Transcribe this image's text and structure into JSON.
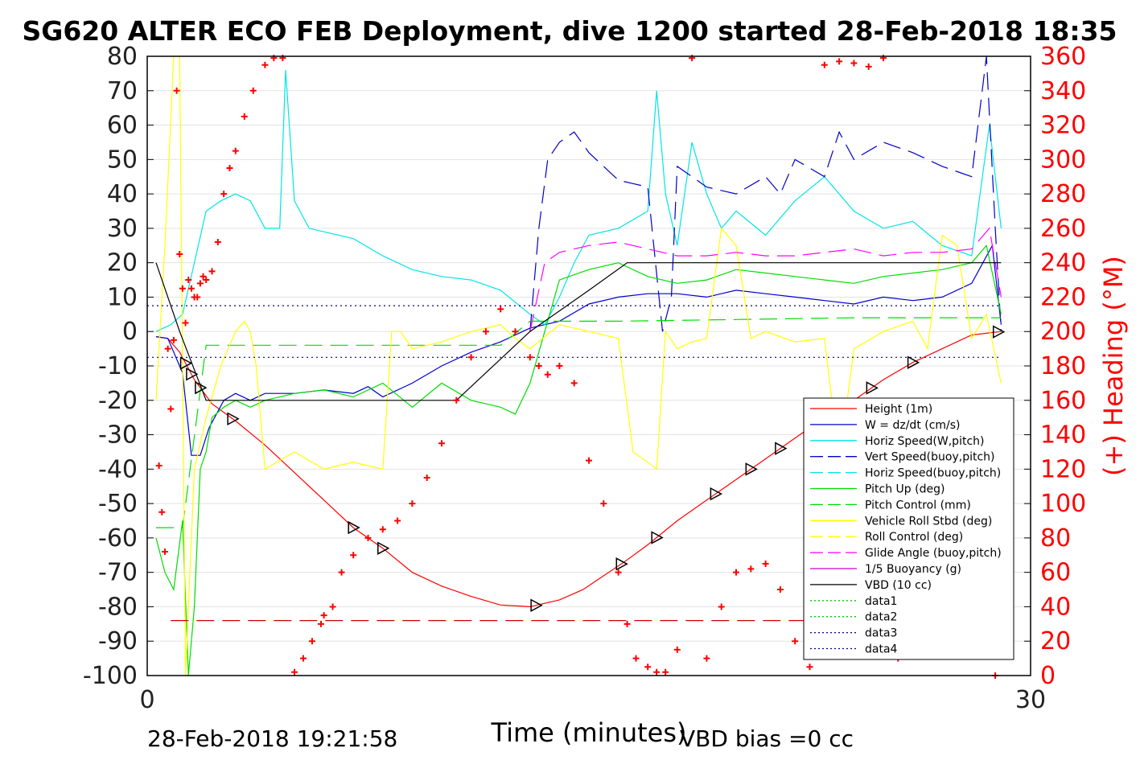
{
  "chart_data": {
    "type": "line",
    "title": "SG620 ALTER ECO FEB Deployment, dive 1200 started 28-Feb-2018 18:35",
    "xlabel": "Time (minutes)",
    "ylabel_right": "(+) Heading (°M)",
    "xlim": [
      0,
      30
    ],
    "ylim_left": [
      -100,
      80
    ],
    "ylim_right": [
      0,
      360
    ],
    "x_ticks": [
      "0",
      "30"
    ],
    "y_ticks_left": [
      "80",
      "70",
      "60",
      "50",
      "40",
      "30",
      "20",
      "10",
      "0",
      "-10",
      "-20",
      "-30",
      "-40",
      "-50",
      "-60",
      "-70",
      "-80",
      "-90",
      "-100"
    ],
    "y_ticks_right": [
      "360",
      "340",
      "320",
      "300",
      "280",
      "260",
      "240",
      "220",
      "200",
      "180",
      "160",
      "140",
      "120",
      "100",
      "80",
      "60",
      "40",
      "20",
      "0"
    ],
    "grid": true,
    "legend_position": "bottom-right",
    "footer_left": "28-Feb-2018 19:21:58",
    "footer_right": "VBD bias =0 cc",
    "colors": {
      "height": "#ff0000",
      "w": "#0000cc",
      "horiz": "#00e5e5",
      "pitch": "#00dd00",
      "roll": "#ffff00",
      "glide": "#ff00ff",
      "vbd": "#000000",
      "heading": "#ff0000"
    },
    "legend": [
      {
        "label": "Height (1m)",
        "color": "#ff0000",
        "dash": "solid"
      },
      {
        "label": "W = dz/dt (cm/s)",
        "color": "#0000cc",
        "dash": "solid"
      },
      {
        "label": "Horiz Speed(W,pitch)",
        "color": "#00e5e5",
        "dash": "solid"
      },
      {
        "label": "Vert Speed(buoy,pitch)",
        "color": "#0000cc",
        "dash": "dashed"
      },
      {
        "label": "Horiz Speed(buoy,pitch)",
        "color": "#00e5e5",
        "dash": "dashed"
      },
      {
        "label": "Pitch Up (deg)",
        "color": "#00dd00",
        "dash": "solid"
      },
      {
        "label": "Pitch Control (mm)",
        "color": "#00dd00",
        "dash": "dashed"
      },
      {
        "label": "Vehicle Roll Stbd (deg)",
        "color": "#ffff00",
        "dash": "solid"
      },
      {
        "label": "Roll Control (deg)",
        "color": "#ffff00",
        "dash": "dashed"
      },
      {
        "label": "Glide Angle (buoy,pitch)",
        "color": "#ff00ff",
        "dash": "dashed"
      },
      {
        "label": "1/5 Buoyancy (g)",
        "color": "#cc00cc",
        "dash": "solid"
      },
      {
        "label": "VBD (10 cc)",
        "color": "#000000",
        "dash": "solid"
      },
      {
        "label": "data1",
        "color": "#00cc00",
        "dash": "dotted"
      },
      {
        "label": "data2",
        "color": "#00cc00",
        "dash": "dotted"
      },
      {
        "label": "data3",
        "color": "#000088",
        "dash": "dotted"
      },
      {
        "label": "data4",
        "color": "#000088",
        "dash": "dotted"
      }
    ],
    "series": [
      {
        "name": "Height (1m)",
        "color": "#ff0000",
        "dash": "solid",
        "x": [
          0.3,
          0.7,
          1.1,
          1.6,
          2.2,
          3.0,
          4.0,
          5.0,
          6.0,
          7.0,
          8.0,
          9.0,
          10.0,
          11.0,
          12.0,
          13.0,
          14.0,
          14.8,
          15.5,
          16.2,
          17.0,
          18.0,
          19.0,
          20.0,
          21.0,
          22.0,
          23.0,
          24.0,
          25.0,
          26.0,
          27.0,
          28.0,
          29.0
        ],
        "y": [
          -1.5,
          -2,
          -6,
          -14,
          -21,
          -26,
          -33,
          -41,
          -49,
          -57,
          -63,
          -70,
          -74,
          -77,
          -79.5,
          -80,
          -78,
          -75,
          -71,
          -67,
          -62,
          -55,
          -49,
          -43,
          -37,
          -31,
          -25,
          -20,
          -14,
          -9,
          -5,
          -1,
          0
        ]
      },
      {
        "name": "W = dz/dt (cm/s)",
        "color": "#0000cc",
        "dash": "solid",
        "x": [
          0.3,
          0.7,
          1.2,
          1.5,
          1.8,
          2.1,
          2.6,
          3.0,
          3.5,
          4.0,
          5.0,
          6.0,
          7.0,
          7.5,
          8.0,
          9.0,
          10.0,
          11.0,
          12.0,
          13.0,
          14.0,
          15.0,
          16.0,
          17.0,
          18.0,
          19.0,
          20.0,
          21.0,
          22.0,
          23.0,
          24.0,
          25.0,
          26.0,
          27.0,
          28.0,
          28.7,
          29.0
        ],
        "y": [
          -1.5,
          -2,
          -12,
          -36,
          -36,
          -28,
          -20,
          -18,
          -20,
          -18,
          -18,
          -17,
          -18,
          -16,
          -19,
          -15,
          -10,
          -6,
          -3,
          1,
          3,
          8,
          10,
          11,
          11,
          10,
          12,
          11,
          10,
          9,
          8,
          10,
          9,
          10,
          14,
          25,
          2
        ]
      },
      {
        "name": "Horiz Speed(W,pitch)",
        "color": "#00e5e5",
        "dash": "solid",
        "x": [
          0.3,
          0.8,
          1.2,
          1.6,
          2.0,
          2.5,
          3.0,
          3.5,
          4.0,
          4.5,
          4.7,
          5.0,
          5.5,
          6.0,
          7.0,
          8.0,
          9.0,
          10.0,
          11.0,
          12.0,
          13.0,
          13.5,
          14.0,
          14.5,
          15.0,
          16.0,
          17.0,
          17.3,
          17.6,
          18.0,
          18.5,
          19.0,
          19.5,
          20.0,
          21.0,
          22.0,
          23.0,
          24.0,
          25.0,
          26.0,
          27.0,
          28.0,
          28.6,
          29.0
        ],
        "y": [
          0,
          2,
          5,
          20,
          35,
          38,
          40,
          38,
          30,
          30,
          76,
          38,
          30,
          29,
          27,
          22,
          18,
          16,
          15,
          12,
          5,
          2,
          10,
          20,
          28,
          30,
          35,
          70,
          40,
          25,
          55,
          40,
          30,
          35,
          28,
          38,
          45,
          35,
          30,
          32,
          25,
          22,
          60,
          30
        ]
      },
      {
        "name": "Vert Speed(buoy,pitch)",
        "color": "#0000cc",
        "dash": "dashed",
        "x": [
          13.0,
          13.3,
          13.6,
          14.0,
          14.5,
          15.0,
          15.5,
          16.0,
          16.5,
          17.0,
          17.5,
          17.8,
          18.0,
          18.5,
          19.0,
          20.0,
          21.0,
          21.5,
          22.0,
          23.0,
          23.5,
          24.0,
          25.0,
          26.0,
          27.0,
          28.0,
          28.5,
          28.8,
          29.0
        ],
        "y": [
          0,
          30,
          50,
          55,
          58,
          52,
          48,
          44,
          43,
          42,
          0,
          10,
          48,
          45,
          42,
          40,
          45,
          40,
          50,
          45,
          58,
          50,
          55,
          52,
          48,
          45,
          80,
          30,
          0
        ]
      },
      {
        "name": "Pitch Up (deg)",
        "color": "#00dd00",
        "dash": "solid",
        "x": [
          0.3,
          0.6,
          0.9,
          1.2,
          1.4,
          1.6,
          1.8,
          2.0,
          2.2,
          2.6,
          3.0,
          3.5,
          4.0,
          5.0,
          6.0,
          7.0,
          8.0,
          9.0,
          10.0,
          11.0,
          12.0,
          12.5,
          13.0,
          13.5,
          14.0,
          15.0,
          16.0,
          17.0,
          18.0,
          19.0,
          20.0,
          21.0,
          22.0,
          23.0,
          24.0,
          25.0,
          26.0,
          27.0,
          28.0,
          28.5,
          29.0
        ],
        "y": [
          -60,
          -70,
          -75,
          -55,
          -100,
          -80,
          -40,
          -35,
          -25,
          -22,
          -20,
          -22,
          -20,
          -18,
          -17,
          -19,
          -15,
          -22,
          -15,
          -20,
          -22,
          -24,
          -15,
          0,
          15,
          18,
          20,
          16,
          14,
          15,
          18,
          17,
          16,
          15,
          14,
          16,
          17,
          18,
          20,
          25,
          5
        ]
      },
      {
        "name": "Pitch Control (mm)",
        "color": "#00dd00",
        "dash": "dashed",
        "x": [
          0.3,
          1.2,
          2.0,
          6.0,
          8.0,
          12.0,
          13.0,
          16.0,
          20.0,
          24.0,
          28.0,
          29.0
        ],
        "y": [
          -57,
          -57,
          -4,
          -4,
          -4,
          -4,
          3,
          3,
          3.5,
          4,
          4,
          4
        ]
      },
      {
        "name": "Vehicle Roll Stbd (deg)",
        "color": "#ffff00",
        "dash": "solid",
        "x": [
          0.3,
          0.6,
          0.9,
          1.1,
          1.3,
          1.6,
          2.0,
          2.5,
          3.0,
          3.3,
          3.5,
          3.7,
          4.0,
          5.0,
          6.0,
          7.0,
          8.0,
          8.3,
          8.6,
          9.0,
          10.0,
          11.0,
          12.0,
          12.5,
          13.0,
          14.0,
          15.0,
          16.0,
          16.5,
          17.0,
          17.3,
          17.6,
          18.0,
          18.5,
          19.0,
          19.5,
          20.0,
          20.5,
          21.0,
          22.0,
          23.0,
          23.5,
          24.0,
          25.0,
          26.0,
          26.5,
          27.0,
          27.5,
          28.0,
          28.5,
          29.0
        ],
        "y": [
          -20,
          25,
          80,
          80,
          -100,
          -40,
          -25,
          -10,
          0,
          3,
          0,
          -10,
          -40,
          -35,
          -40,
          -38,
          -40,
          0,
          0,
          -5,
          -3,
          0,
          2,
          -2,
          -5,
          2,
          0,
          -2,
          -35,
          -38,
          -40,
          0,
          -5,
          -3,
          -2,
          30,
          25,
          -2,
          0,
          -3,
          -2,
          -38,
          -5,
          0,
          3,
          -5,
          28,
          25,
          -2,
          5,
          -15
        ]
      },
      {
        "name": "Glide Angle (buoy,pitch)",
        "color": "#ff00ff",
        "dash": "dashed",
        "x": [
          13.0,
          13.5,
          14.0,
          15.0,
          16.0,
          17.0,
          18.0,
          19.0,
          20.0,
          21.0,
          22.0,
          23.0,
          24.0,
          25.0,
          26.0,
          27.0,
          28.0,
          28.6,
          29.0
        ],
        "y": [
          0,
          20,
          23,
          25,
          26,
          24,
          22,
          22,
          23,
          22,
          22,
          23,
          24,
          22,
          23,
          23,
          24,
          30,
          10
        ]
      },
      {
        "name": "VBD (10 cc)",
        "color": "#000000",
        "dash": "solid",
        "x": [
          0.3,
          1.1,
          2.0,
          9.0,
          10.5,
          11.5,
          13.0,
          15.0,
          16.3,
          29.0
        ],
        "y": [
          20,
          0,
          -20,
          -20,
          -20,
          -12,
          0,
          12,
          20,
          20
        ]
      },
      {
        "name": "data3",
        "color": "#000088",
        "dash": "dotted",
        "x": [
          0,
          29
        ],
        "y": [
          7.5,
          7.5
        ]
      },
      {
        "name": "data4",
        "color": "#000088",
        "dash": "dotted",
        "x": [
          0,
          29
        ],
        "y": [
          -7.5,
          -7.5
        ]
      },
      {
        "name": "bottom depth",
        "color": "#cc0000",
        "dash": "dashed",
        "x": [
          0.8,
          29.0
        ],
        "y": [
          -84,
          -84
        ]
      }
    ],
    "heading": {
      "x": [
        0.4,
        0.5,
        0.6,
        0.7,
        0.8,
        0.9,
        1.0,
        1.1,
        1.2,
        1.3,
        1.4,
        1.5,
        1.6,
        1.7,
        1.8,
        1.9,
        2.0,
        2.2,
        2.4,
        2.6,
        2.8,
        3.0,
        3.3,
        3.6,
        4.0,
        4.3,
        4.6,
        5.0,
        5.3,
        5.6,
        5.9,
        6.0,
        6.3,
        6.6,
        7.0,
        7.5,
        8.0,
        8.5,
        9.0,
        9.5,
        10.0,
        10.5,
        11.0,
        11.5,
        12.0,
        12.5,
        13.0,
        13.3,
        13.6,
        14.0,
        14.5,
        15.0,
        15.5,
        16.0,
        16.3,
        16.6,
        17.0,
        17.3,
        17.6,
        18.0,
        18.5,
        19.0,
        19.5,
        20.0,
        20.5,
        21.0,
        21.5,
        22.0,
        22.5,
        23.0,
        23.5,
        24.0,
        24.5,
        25.0,
        25.5,
        26.0,
        26.5,
        27.0,
        27.5,
        28.0,
        28.4,
        28.8
      ],
      "y": [
        122,
        95,
        72,
        190,
        155,
        195,
        340,
        245,
        225,
        205,
        230,
        225,
        220,
        220,
        228,
        232,
        230,
        235,
        252,
        280,
        295,
        305,
        325,
        340,
        355,
        359,
        359,
        2,
        10,
        20,
        30,
        35,
        40,
        60,
        70,
        80,
        85,
        90,
        100,
        115,
        135,
        160,
        185,
        200,
        213,
        200,
        185,
        180,
        175,
        180,
        170,
        125,
        100,
        60,
        30,
        10,
        5,
        2,
        2,
        15,
        359,
        10,
        40,
        60,
        62,
        65,
        50,
        20,
        5,
        355,
        357,
        356,
        354,
        359,
        10,
        25,
        40,
        50,
        55,
        40,
        50,
        0
      ]
    }
  }
}
